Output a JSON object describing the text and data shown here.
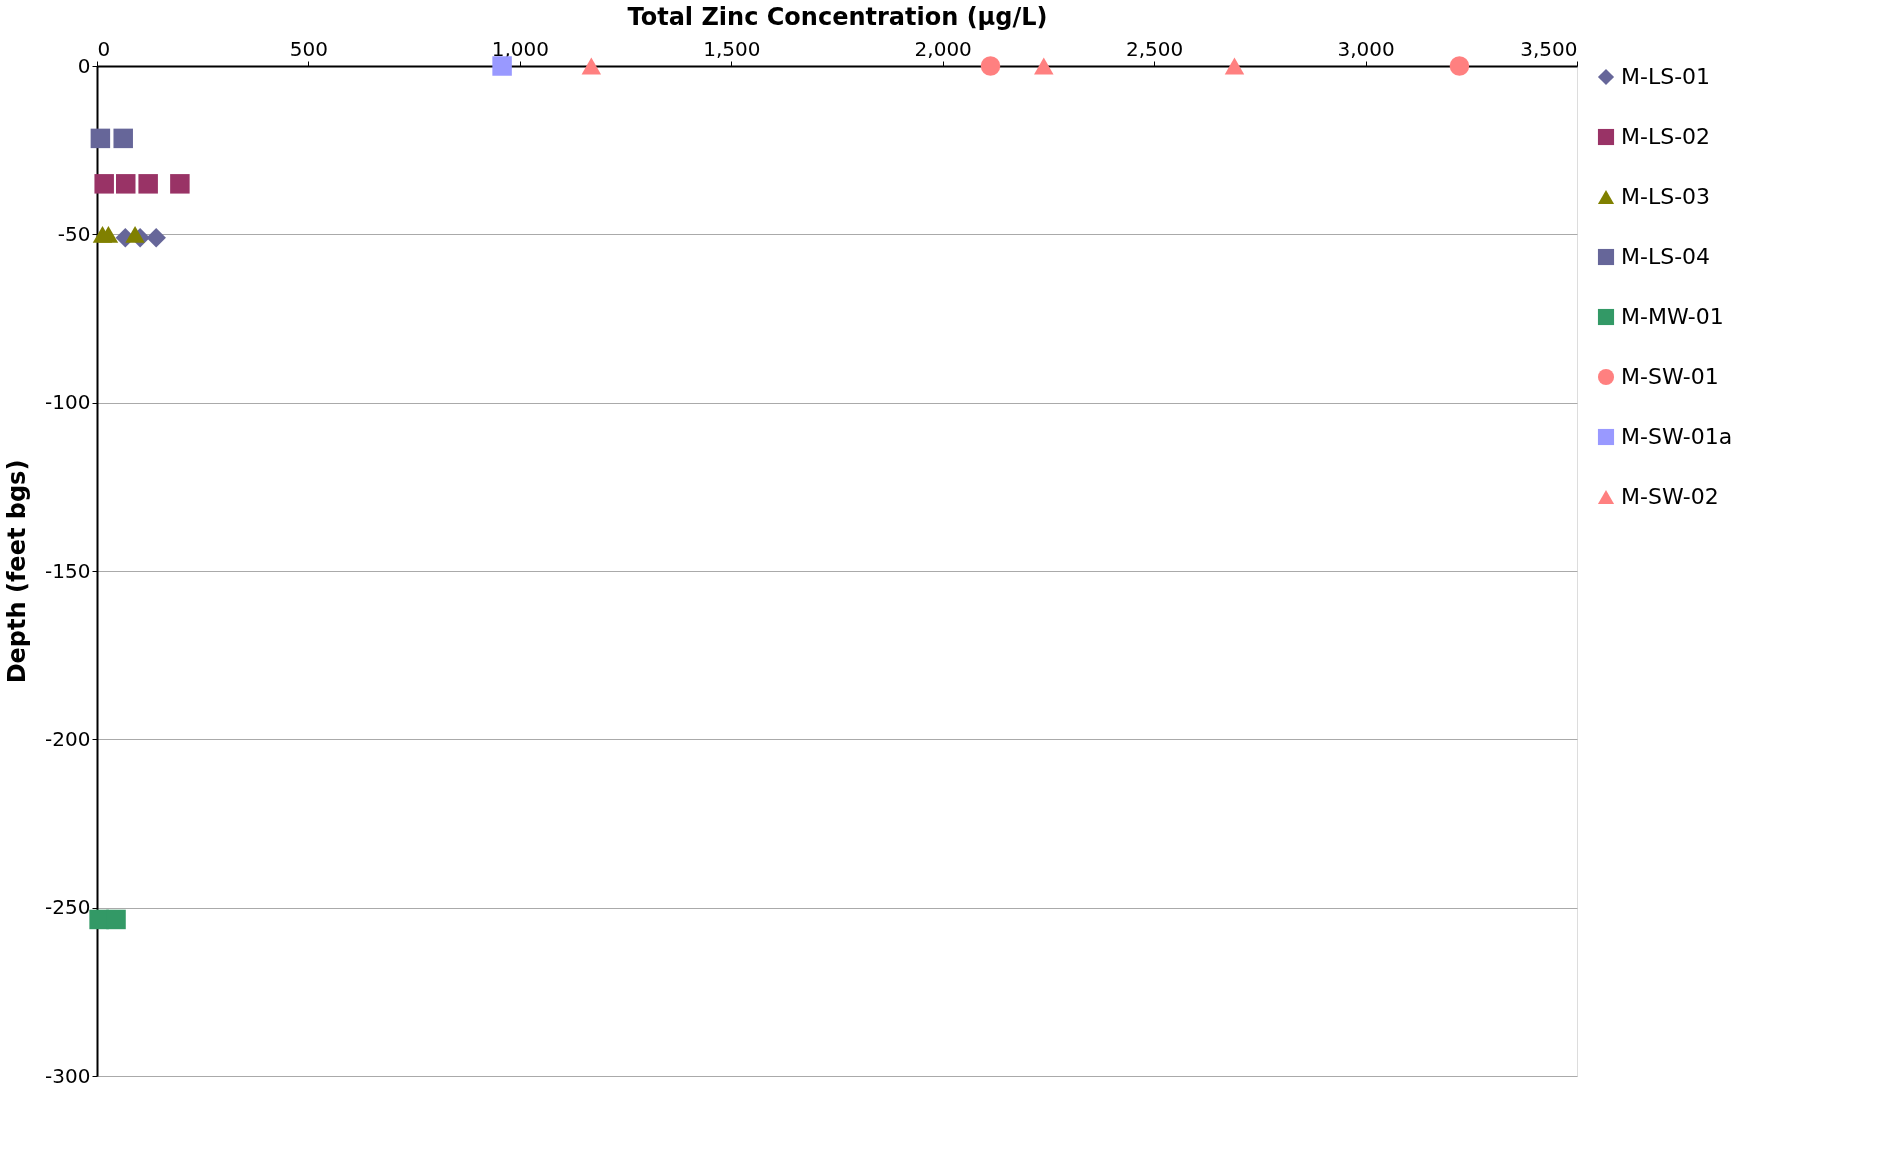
{
  "chart_data": {
    "type": "scatter",
    "xlabel": "Total Zinc Concentration (µg/L)",
    "ylabel": "Depth (feet bgs)",
    "xlim": [
      0,
      3500
    ],
    "xticks": [
      0,
      500,
      {
        "value": 1000,
        "label": "1,000"
      },
      {
        "value": 1500,
        "label": "1,500"
      },
      {
        "value": 2000,
        "label": "2,000"
      },
      {
        "value": 2500,
        "label": "2,500"
      },
      {
        "value": 3000,
        "label": "3,000"
      },
      {
        "value": 3500,
        "label": "3,500"
      }
    ],
    "ylim": [
      -300,
      0
    ],
    "yticks": [
      0,
      -50,
      -100,
      -150,
      -200,
      -250,
      -300
    ],
    "grid": "y",
    "legend": "right",
    "series": [
      {
        "name": "M-LS-01",
        "color": "#666699",
        "marker": "diamond",
        "x": [
          67,
          102,
          140
        ],
        "values": [
          -51,
          -51,
          -51
        ]
      },
      {
        "name": "M-LS-02",
        "color": "#993366",
        "marker": "square",
        "x": [
          17,
          68,
          121,
          196
        ],
        "values": [
          -35,
          -35,
          -35,
          -35
        ]
      },
      {
        "name": "M-LS-03",
        "color": "#808000",
        "marker": "triangle",
        "x": [
          13,
          27,
          90
        ],
        "values": [
          -50,
          -50,
          -50
        ]
      },
      {
        "name": "M-LS-04",
        "color": "#666699",
        "marker": "square",
        "x": [
          8,
          62
        ],
        "values": [
          -21.5,
          -21.5
        ]
      },
      {
        "name": "M-MW-01",
        "color": "#339966",
        "marker": "square",
        "x": [
          5,
          45
        ],
        "values": [
          -253.5,
          -253.5
        ]
      },
      {
        "name": "M-SW-01",
        "color": "#ff8080",
        "marker": "circle",
        "x": [
          2113,
          3222
        ],
        "values": [
          0,
          0
        ]
      },
      {
        "name": "M-SW-01a",
        "color": "#9999ff",
        "marker": "square",
        "x": [
          958
        ],
        "values": [
          0
        ]
      },
      {
        "name": "M-SW-02",
        "color": "#ff8080",
        "marker": "triangle",
        "x": [
          1169,
          2239,
          2690
        ],
        "values": [
          0,
          0,
          0
        ]
      }
    ]
  }
}
